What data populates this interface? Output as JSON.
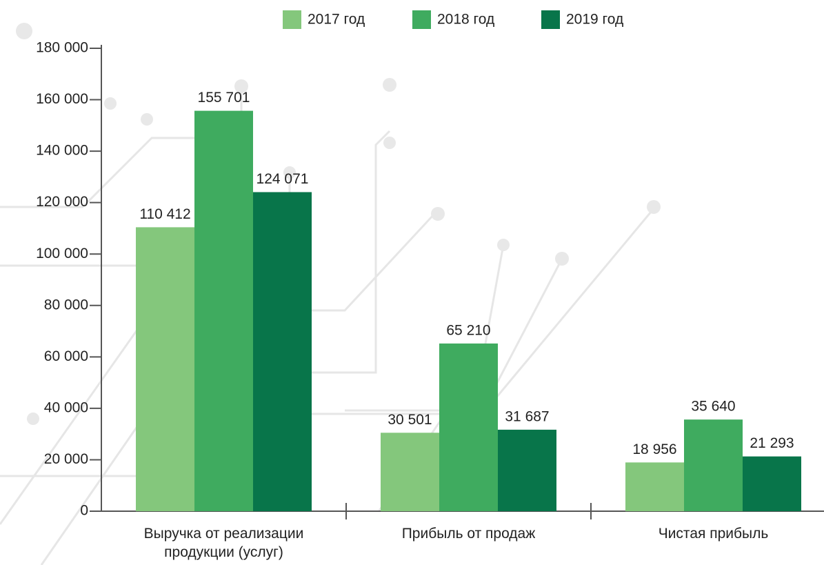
{
  "chart_data": {
    "type": "bar",
    "categories": [
      "Выручка от реализации продукции (услуг)",
      "Прибыль от продаж",
      "Чистая прибыль"
    ],
    "series": [
      {
        "name": "2017 год",
        "color": "#84c77c",
        "values": [
          110412,
          30501,
          18956
        ],
        "value_labels": [
          "110 412",
          "30 501",
          "18 956"
        ]
      },
      {
        "name": "2018 год",
        "color": "#3fab5f",
        "values": [
          155701,
          65210,
          35640
        ],
        "value_labels": [
          "155 701",
          "65 210",
          "35 640"
        ]
      },
      {
        "name": "2019 год",
        "color": "#08754a",
        "values": [
          124071,
          31687,
          21293
        ],
        "value_labels": [
          "124 071",
          "31 687",
          "21 293"
        ]
      }
    ],
    "ylim": [
      0,
      180000
    ],
    "yticks": [
      0,
      {
        "value": 20000,
        "label": "20 000"
      },
      {
        "value": 40000,
        "label": "40 000"
      },
      {
        "value": 60000,
        "label": "60 000"
      },
      {
        "value": 80000,
        "label": "80 000"
      },
      {
        "value": 100000,
        "label": "100 000"
      },
      {
        "value": 120000,
        "label": "120 000"
      },
      {
        "value": 140000,
        "label": "140 000"
      },
      {
        "value": 160000,
        "label": "160 000"
      },
      {
        "value": 180000,
        "label": "180 000"
      }
    ],
    "legend": "top",
    "grid": false
  }
}
